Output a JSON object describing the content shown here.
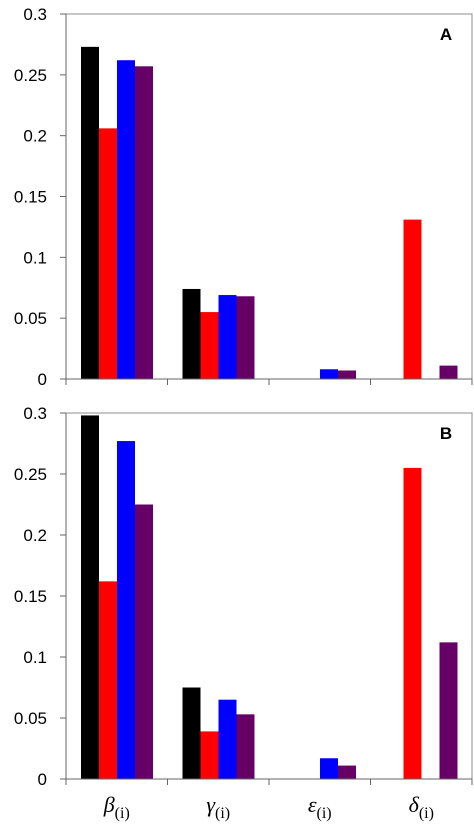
{
  "chart_data": [
    {
      "type": "bar",
      "panel_label": "A",
      "categories": [
        {
          "symbol": "β",
          "subscript": "(i)"
        },
        {
          "symbol": "γ",
          "subscript": "(i)"
        },
        {
          "symbol": "ε",
          "subscript": "(i)"
        },
        {
          "symbol": "δ",
          "subscript": "(i)"
        }
      ],
      "series": [
        {
          "color": "#000000",
          "values": [
            0.273,
            0.074,
            0,
            0
          ]
        },
        {
          "color": "#ff0000",
          "values": [
            0.206,
            0.055,
            0,
            0.131
          ]
        },
        {
          "color": "#0000ff",
          "values": [
            0.262,
            0.069,
            0.008,
            0
          ]
        },
        {
          "color": "#660066",
          "values": [
            0.257,
            0.068,
            0.007,
            0.011
          ]
        }
      ],
      "ylim": [
        0,
        0.3
      ],
      "yticks": [
        "0",
        "0.05",
        "0.1",
        "0.15",
        "0.2",
        "0.25",
        "0.3"
      ],
      "ytick_values": [
        0,
        0.05,
        0.1,
        0.15,
        0.2,
        0.25,
        0.3
      ],
      "grid": false,
      "legend": "none"
    },
    {
      "type": "bar",
      "panel_label": "B",
      "categories": [
        {
          "symbol": "β",
          "subscript": "(i)"
        },
        {
          "symbol": "γ",
          "subscript": "(i)"
        },
        {
          "symbol": "ε",
          "subscript": "(i)"
        },
        {
          "symbol": "δ",
          "subscript": "(i)"
        }
      ],
      "series": [
        {
          "color": "#000000",
          "values": [
            0.298,
            0.075,
            0,
            0
          ]
        },
        {
          "color": "#ff0000",
          "values": [
            0.162,
            0.039,
            0,
            0.255
          ]
        },
        {
          "color": "#0000ff",
          "values": [
            0.277,
            0.065,
            0.017,
            0
          ]
        },
        {
          "color": "#660066",
          "values": [
            0.225,
            0.053,
            0.011,
            0.112
          ]
        }
      ],
      "ylim": [
        0,
        0.3
      ],
      "yticks": [
        "0",
        "0.05",
        "0.1",
        "0.15",
        "0.2",
        "0.25",
        "0.3"
      ],
      "ytick_values": [
        0,
        0.05,
        0.1,
        0.15,
        0.2,
        0.25,
        0.3
      ],
      "grid": false,
      "legend": "none"
    }
  ]
}
